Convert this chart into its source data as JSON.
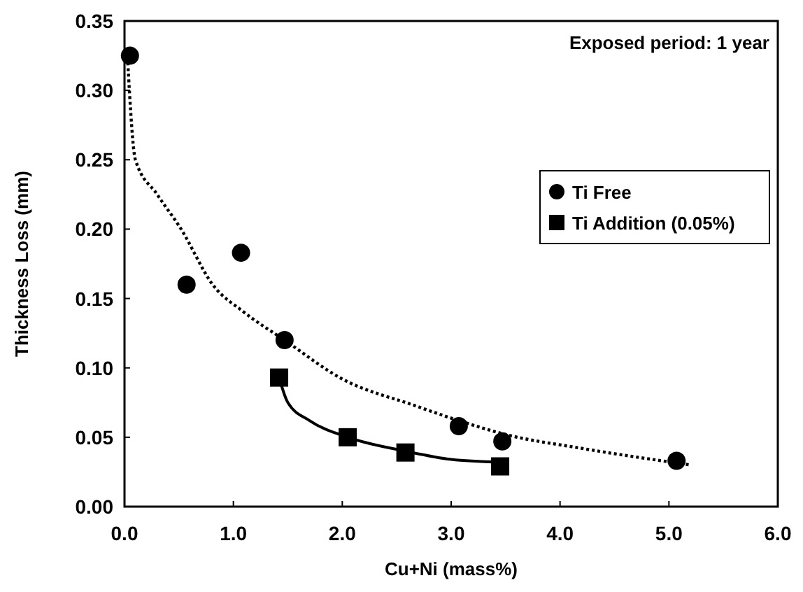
{
  "chart_data": {
    "type": "scatter",
    "xlabel": "Cu+Ni (mass%)",
    "ylabel": "Thickness Loss (mm)",
    "xlim": [
      0,
      6
    ],
    "ylim": [
      0,
      0.35
    ],
    "xticks": [
      {
        "value": 0,
        "label": "0.0"
      },
      {
        "value": 1,
        "label": "1.0"
      },
      {
        "value": 2,
        "label": "2.0"
      },
      {
        "value": 3,
        "label": "3.0"
      },
      {
        "value": 4,
        "label": "4.0"
      },
      {
        "value": 5,
        "label": "5.0"
      },
      {
        "value": 6,
        "label": "6.0"
      }
    ],
    "yticks": [
      {
        "value": 0,
        "label": "0.00"
      },
      {
        "value": 0.05,
        "label": "0.05"
      },
      {
        "value": 0.1,
        "label": "0.10"
      },
      {
        "value": 0.15,
        "label": "0.15"
      },
      {
        "value": 0.2,
        "label": "0.20"
      },
      {
        "value": 0.25,
        "label": "0.25"
      },
      {
        "value": 0.3,
        "label": "0.30"
      },
      {
        "value": 0.35,
        "label": "0.35"
      }
    ],
    "annotations": [
      "Exposed period: 1 year"
    ],
    "legend": "right",
    "grid": false,
    "series": [
      {
        "type": "line",
        "color": "#000000",
        "marker": "none",
        "line_style": "dotted",
        "x": [
          0.03,
          0.1,
          0.3,
          0.52,
          0.81,
          1.1,
          1.47,
          2.0,
          2.66,
          3.07,
          3.5,
          4.2,
          5.2
        ],
        "values": [
          0.32,
          0.25,
          0.225,
          0.2,
          0.16,
          0.14,
          0.12,
          0.092,
          0.073,
          0.062,
          0.052,
          0.042,
          0.03
        ]
      },
      {
        "type": "line",
        "color": "#000000",
        "marker": "none",
        "line_style": "solid",
        "x": [
          1.42,
          1.5,
          1.7,
          2.05,
          2.58,
          3.0,
          3.45
        ],
        "values": [
          0.093,
          0.075,
          0.062,
          0.05,
          0.04,
          0.034,
          0.032
        ]
      },
      {
        "name": "Ti Free",
        "color": "#000000",
        "marker": "circle",
        "x": [
          0.05,
          0.57,
          1.07,
          1.47,
          3.07,
          3.47,
          5.07
        ],
        "values": [
          0.325,
          0.16,
          0.183,
          0.12,
          0.058,
          0.047,
          0.033
        ]
      },
      {
        "name": "Ti Addition (0.05%)",
        "color": "#000000",
        "marker": "square",
        "x": [
          1.42,
          2.05,
          2.58,
          3.45
        ],
        "values": [
          0.093,
          0.05,
          0.039,
          0.029
        ]
      }
    ]
  }
}
